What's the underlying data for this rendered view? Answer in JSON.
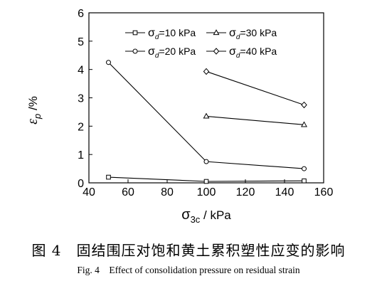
{
  "chart_data": {
    "type": "line",
    "x": [
      50,
      100,
      150
    ],
    "series": [
      {
        "name": "σd=10 kPa",
        "marker": "square",
        "values": [
          0.2,
          0.05,
          0.07
        ]
      },
      {
        "name": "σd=30 kPa",
        "marker": "triangle",
        "values": [
          null,
          2.35,
          2.05
        ]
      },
      {
        "name": "σd=20 kPa",
        "marker": "circle",
        "values": [
          4.25,
          0.75,
          0.5
        ]
      },
      {
        "name": "σd=40 kPa",
        "marker": "diamond",
        "values": [
          null,
          3.93,
          2.75
        ]
      }
    ],
    "xlim": [
      40,
      160
    ],
    "ylim": [
      0,
      6
    ],
    "xticks": [
      40,
      60,
      80,
      100,
      120,
      140,
      160
    ],
    "yticks": [
      0,
      1,
      2,
      3,
      4,
      5,
      6
    ],
    "xlabel": {
      "main": "σ",
      "sub": "3c",
      "unit": " / kPa"
    },
    "ylabel": {
      "main": "ε",
      "sub": "p",
      "unit": " /%"
    },
    "legend": {
      "placement": "top-right",
      "items": [
        {
          "prefix": "σ",
          "sub": "d",
          "suffix": "=10 kPa"
        },
        {
          "prefix": "σ",
          "sub": "d",
          "suffix": "=30 kPa"
        },
        {
          "prefix": "σ",
          "sub": "d",
          "suffix": "=20 kPa"
        },
        {
          "prefix": "σ",
          "sub": "d",
          "suffix": "=40 kPa"
        }
      ]
    },
    "grid": false,
    "color": "#000000"
  },
  "caption": {
    "zh": "图 4　固结围压对饱和黄土累积塑性应变的影响",
    "en": "Fig. 4　Effect of consolidation pressure on residual strain"
  }
}
